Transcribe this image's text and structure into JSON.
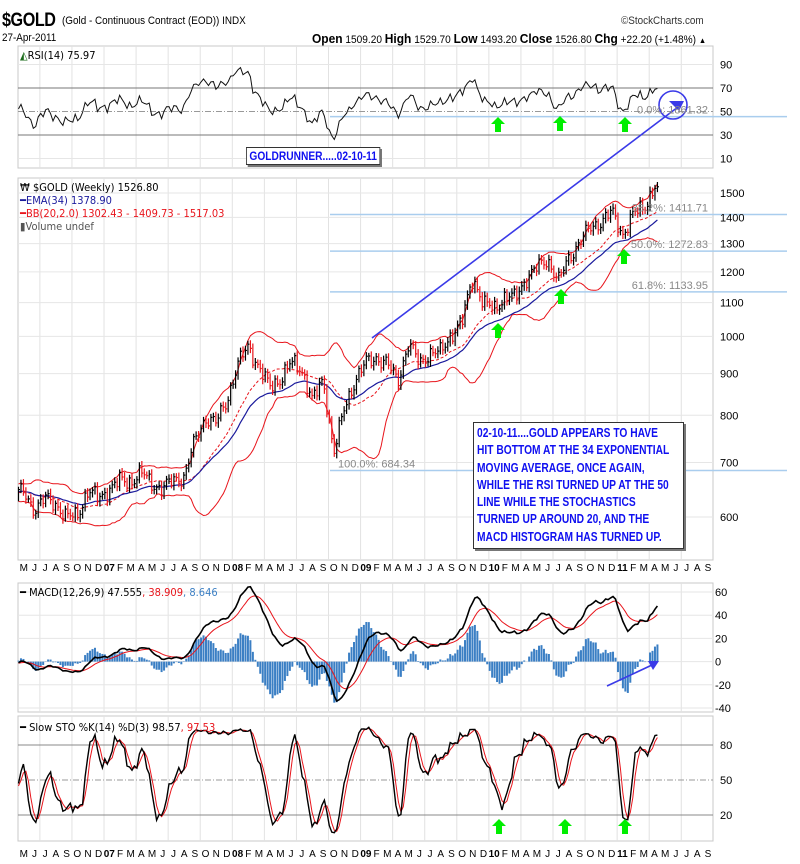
{
  "header": {
    "symbol": "$GOLD",
    "description": "(Gold - Continuous Contract (EOD))",
    "exchange": "INDX",
    "date": "27-Apr-2011",
    "copyright": "©StockCharts.com",
    "open_label": "Open",
    "open": "1509.20",
    "high_label": "High",
    "high": "1529.70",
    "low_label": "Low",
    "low": "1493.20",
    "close_label": "Close",
    "close": "1526.80",
    "chg_label": "Chg",
    "chg": "+22.20 (+1.48%)"
  },
  "legends": {
    "rsi": "RSI(14) 75.97",
    "price": "$GOLD (Weekly) 1526.80",
    "ema": "EMA(34) 1378.90",
    "bb": "BB(20,2.0) 1302.43 - 1409.73 - 1517.03",
    "volume": "Volume undef",
    "macd": "MACD(12,26,9) 47.555",
    "macd_signal": ", 38.909",
    "macd_hist": ", 8.646",
    "sto": "Slow STO %K(14) %D(3) 98.57",
    "sto_d": ", 97.53"
  },
  "annotations": {
    "title_box": "GOLDRUNNER.....02-10-11",
    "comment_lines": [
      "02-10-11....GOLD APPEARS TO HAVE",
      "HIT BOTTOM AT THE 34 EXPONENTIAL",
      "MOVING AVERAGE, ONCE AGAIN,",
      "WHILE THE RSI TURNED UP AT THE 50",
      "LINE WHILE THE STOCHASTICS",
      "TURNED UP AROUND 20, AND THE",
      "MACD HISTOGRAM HAS TURNED UP."
    ]
  },
  "colors": {
    "ema": "#1a1a9c",
    "bb": "#e8141b",
    "up": "#000000",
    "down": "#e8141b",
    "fib": "#a9cdee",
    "trend": "#3a3ae8",
    "arrow": "#00ee00",
    "macd_hist": "#3b7fc4",
    "sto_d": "#e8141b"
  },
  "chart_data": {
    "type": "ohlc",
    "title": "$GOLD (Weekly)",
    "frequency": "weekly",
    "x_start": "May-2006",
    "x_end": "Sep-2011",
    "x_tick_labels": [
      "M",
      "J",
      "J",
      "A",
      "S",
      "O",
      "N",
      "D",
      "07",
      "F",
      "M",
      "A",
      "M",
      "J",
      "J",
      "A",
      "S",
      "O",
      "N",
      "D",
      "08",
      "F",
      "M",
      "A",
      "M",
      "J",
      "J",
      "A",
      "S",
      "O",
      "N",
      "D",
      "09",
      "F",
      "M",
      "A",
      "M",
      "J",
      "J",
      "A",
      "S",
      "O",
      "N",
      "D",
      "10",
      "F",
      "M",
      "A",
      "M",
      "J",
      "J",
      "A",
      "S",
      "O",
      "N",
      "D",
      "11",
      "F",
      "M",
      "A",
      "M",
      "J",
      "J",
      "A",
      "S"
    ],
    "monthly_close_approx": [
      643,
      613,
      632,
      623,
      599,
      603,
      646,
      632,
      650,
      665,
      663,
      680,
      659,
      650,
      666,
      672,
      743,
      795,
      783,
      834,
      923,
      972,
      916,
      865,
      887,
      928,
      912,
      833,
      884,
      718,
      816,
      884,
      928,
      942,
      924,
      883,
      979,
      927,
      955,
      955,
      1008,
      1040,
      1182,
      1096,
      1081,
      1118,
      1115,
      1180,
      1213,
      1244,
      1169,
      1248,
      1307,
      1357,
      1386,
      1421,
      1333,
      1411,
      1439,
      1526.8
    ],
    "price_axis": {
      "scale": "log",
      "ticks": [
        1500,
        1400,
        1300,
        1200,
        1100,
        1000,
        900,
        800,
        700,
        600
      ]
    },
    "fibonacci": [
      {
        "label": "0.0%: 1861.32",
        "value": 1861.32
      },
      {
        "label": "38.2%: 1411.71",
        "value": 1411.71
      },
      {
        "label": "50.0%: 1272.83",
        "value": 1272.83
      },
      {
        "label": "61.8%: 1133.95",
        "value": 1133.95
      },
      {
        "label": "100.0%: 684.34",
        "value": 684.34
      }
    ],
    "rsi_axis": {
      "ticks": [
        90,
        70,
        50,
        30,
        10
      ],
      "range": [
        0,
        100
      ]
    },
    "macd_axis": {
      "ticks": [
        60,
        40,
        20,
        0,
        -20,
        -40
      ],
      "range": [
        -45,
        65
      ]
    },
    "sto_axis": {
      "ticks": [
        80,
        50,
        20
      ],
      "range": [
        0,
        100
      ]
    },
    "indicators": {
      "ema": 34,
      "bb": [
        20,
        2.0
      ],
      "rsi": 14,
      "macd": [
        12,
        26,
        9
      ],
      "sto": [
        14,
        3
      ]
    }
  }
}
